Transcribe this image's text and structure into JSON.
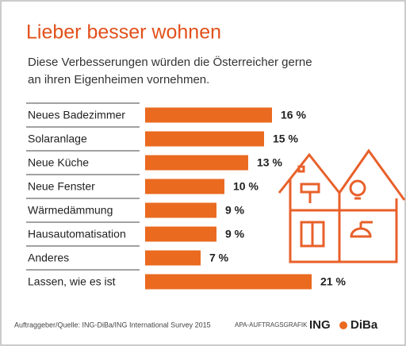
{
  "chart_data": {
    "type": "bar",
    "orientation": "horizontal",
    "title": "Lieber besser wohnen",
    "subtitle": [
      "Diese Verbesserungen würden die Österreicher gerne",
      "an ihren Eigenheimen vornehmen."
    ],
    "categories": [
      "Neues Badezimmer",
      "Solaranlage",
      "Neue Küche",
      "Neue Fenster",
      "Wärmedämmung",
      "Hausautomatisation",
      "Anderes",
      "Lassen, wie es ist"
    ],
    "values": [
      16,
      15,
      13,
      10,
      9,
      9,
      7,
      21
    ],
    "value_labels": [
      "16 %",
      "15 %",
      "13 %",
      "10 %",
      "9 %",
      "9 %",
      "7 %",
      "21 %"
    ],
    "color": "#ea6a1f",
    "source": "Auftraggeber/Quelle: ING-DiBa/ING International Survey 2015",
    "credit": "APA-AUFTRAGSGRAFIK",
    "logo": [
      "ING",
      "DiBa"
    ]
  }
}
